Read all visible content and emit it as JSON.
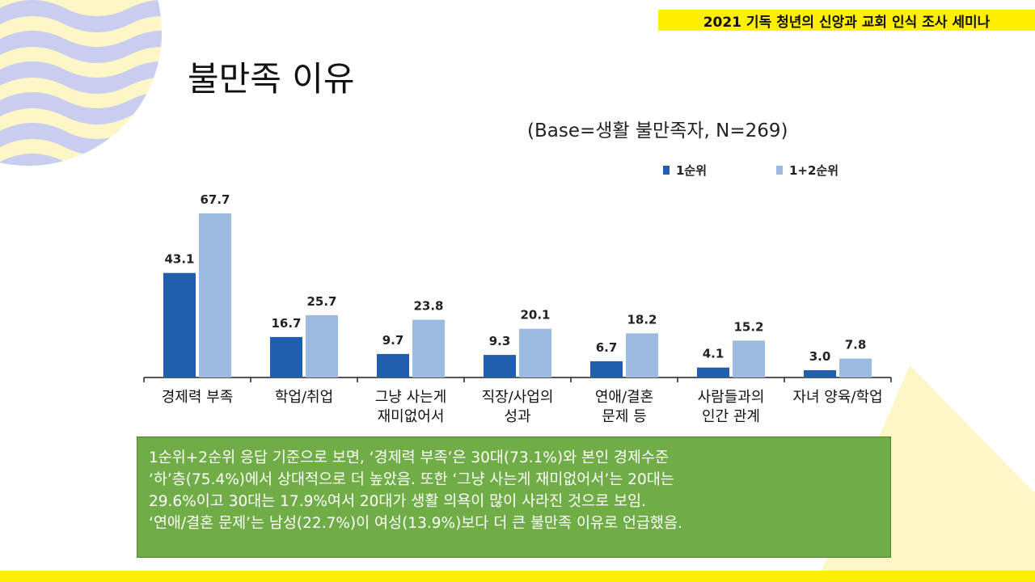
{
  "header": {
    "banner": "2021 기독 청년의 신앙과 교회 인식 조사 세미나"
  },
  "page": {
    "title": "불만족 이유",
    "base_note": "(Base=생활 불만족자, N=269)"
  },
  "chart_data": {
    "type": "bar",
    "categories": [
      [
        "경제력 부족"
      ],
      [
        "학업/취업"
      ],
      [
        "그냥 사는게",
        "재미없어서"
      ],
      [
        "직장/사업의",
        "성과"
      ],
      [
        "연애/결혼",
        "문제 등"
      ],
      [
        "사람들과의",
        "인간 관계"
      ],
      [
        "자녀 양육/학업"
      ]
    ],
    "series": [
      {
        "name": "1순위",
        "color": "#1f5fae",
        "values": [
          43.1,
          16.7,
          9.7,
          9.3,
          6.7,
          4.1,
          3.0
        ],
        "labels": [
          "43.1",
          "16.7",
          "9.7",
          "9.3",
          "6.7",
          "4.1",
          "3.0"
        ]
      },
      {
        "name": "1+2순위",
        "color": "#9dbbe0",
        "values": [
          67.7,
          25.7,
          23.8,
          20.1,
          18.2,
          15.2,
          7.8
        ],
        "labels": [
          "67.7",
          "25.7",
          "23.8",
          "20.1",
          "18.2",
          "15.2",
          "7.8"
        ]
      }
    ],
    "legend_position": "top-right",
    "ylim": [
      0,
      70
    ]
  },
  "summary": {
    "lines": [
      "1순위+2순위 응답 기준으로 보면, ‘경제력 부족’은 30대(73.1%)와 본인 경제수준",
      "‘하’층(75.4%)에서 상대적으로 더 높았음. 또한 ‘그냥 사는게 재미없어서’는 20대는",
      "29.6%이고 30대는 17.9%여서 20대가 생활 의욕이 많이 사라진 것으로 보임.",
      "‘연애/결혼 문제’는 남성(22.7%)이 여성(13.9%)보다 더 큰 불만족 이유로 언급했음."
    ]
  }
}
